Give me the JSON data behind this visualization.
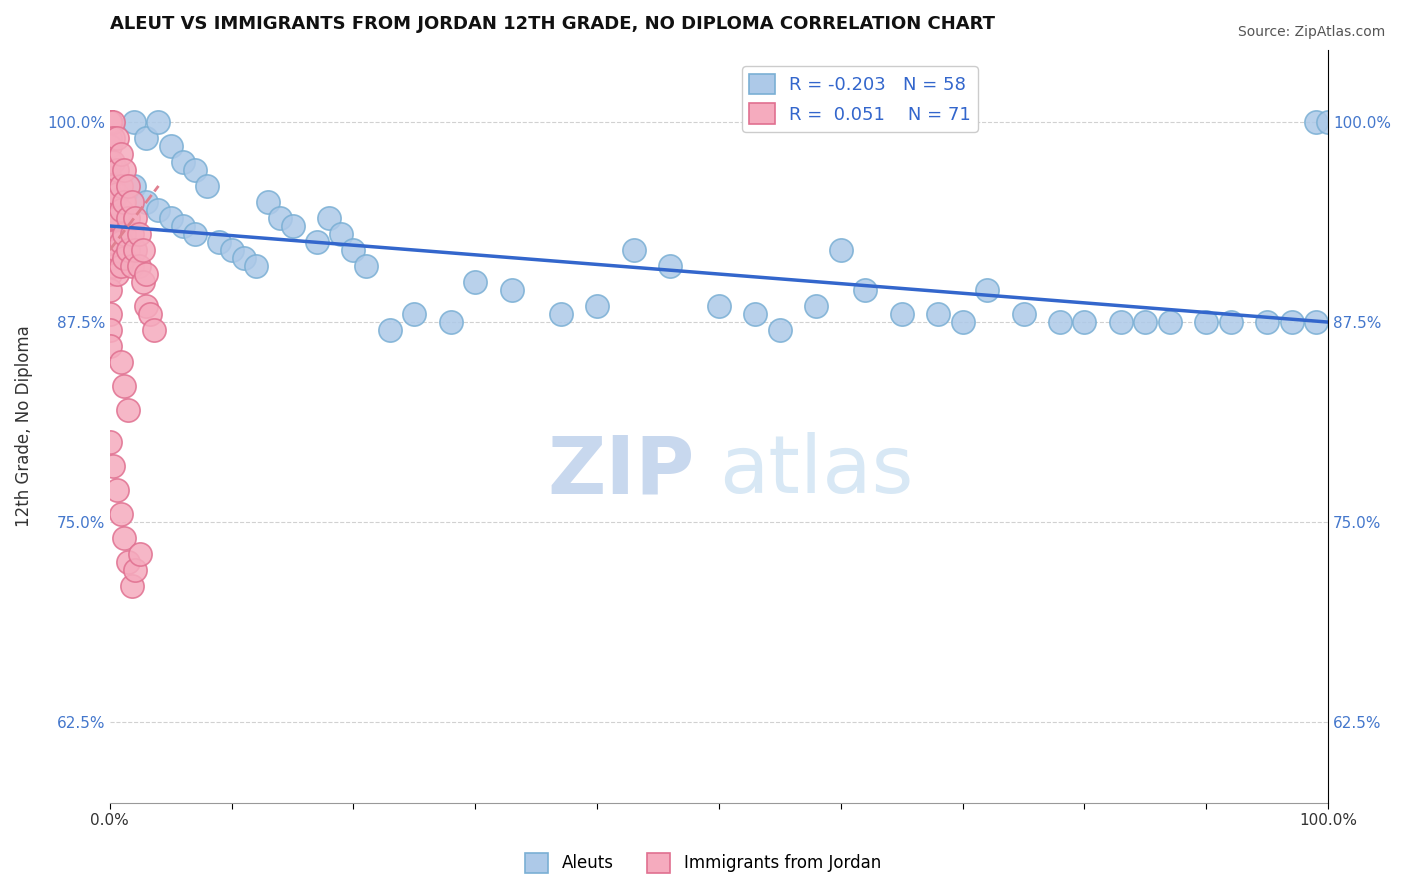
{
  "title": "ALEUT VS IMMIGRANTS FROM JORDAN 12TH GRADE, NO DIPLOMA CORRELATION CHART",
  "source": "Source: ZipAtlas.com",
  "ylabel": "12th Grade, No Diploma",
  "xlim": [
    0.0,
    1.0
  ],
  "ylim": [
    0.575,
    1.045
  ],
  "yticks": [
    0.625,
    0.75,
    0.875,
    1.0
  ],
  "ytick_labels": [
    "62.5%",
    "75.0%",
    "87.5%",
    "100.0%"
  ],
  "xticks": [
    0.0,
    0.1,
    0.2,
    0.3,
    0.4,
    0.5,
    0.6,
    0.7,
    0.8,
    0.9,
    1.0
  ],
  "xtick_labels": [
    "0.0%",
    "",
    "",
    "",
    "",
    "",
    "",
    "",
    "",
    "",
    "100.0%"
  ],
  "legend_R1": "-0.203",
  "legend_N1": "58",
  "legend_R2": "0.051",
  "legend_N2": "71",
  "aleut_color": "#adc9e8",
  "jordan_color": "#f5abbe",
  "aleut_edge": "#7aafd4",
  "jordan_edge": "#e07090",
  "trend1_color": "#3366cc",
  "trend2_color": "#e08090",
  "watermark": "ZIPatlas",
  "watermark_color": "#dce8f5",
  "background": "#ffffff",
  "grid_color": "#cccccc",
  "aleut_x": [
    0.01,
    0.02,
    0.02,
    0.03,
    0.03,
    0.04,
    0.04,
    0.05,
    0.05,
    0.06,
    0.06,
    0.07,
    0.07,
    0.08,
    0.09,
    0.1,
    0.11,
    0.12,
    0.13,
    0.14,
    0.15,
    0.17,
    0.18,
    0.19,
    0.2,
    0.21,
    0.23,
    0.25,
    0.28,
    0.3,
    0.33,
    0.37,
    0.4,
    0.43,
    0.46,
    0.5,
    0.53,
    0.55,
    0.58,
    0.6,
    0.62,
    0.65,
    0.68,
    0.7,
    0.72,
    0.75,
    0.78,
    0.8,
    0.83,
    0.85,
    0.87,
    0.9,
    0.92,
    0.95,
    0.97,
    0.99,
    0.99,
    1.0
  ],
  "aleut_y": [
    0.935,
    1.0,
    0.96,
    0.99,
    0.95,
    1.0,
    0.945,
    0.985,
    0.94,
    0.975,
    0.935,
    0.97,
    0.93,
    0.96,
    0.925,
    0.92,
    0.915,
    0.91,
    0.95,
    0.94,
    0.935,
    0.925,
    0.94,
    0.93,
    0.92,
    0.91,
    0.87,
    0.88,
    0.875,
    0.9,
    0.895,
    0.88,
    0.885,
    0.92,
    0.91,
    0.885,
    0.88,
    0.87,
    0.885,
    0.92,
    0.895,
    0.88,
    0.88,
    0.875,
    0.895,
    0.88,
    0.875,
    0.875,
    0.875,
    0.875,
    0.875,
    0.875,
    0.875,
    0.875,
    0.875,
    0.875,
    1.0,
    1.0
  ],
  "jordan_x": [
    0.0,
    0.0,
    0.0,
    0.0,
    0.0,
    0.0,
    0.0,
    0.0,
    0.0,
    0.0,
    0.0,
    0.0,
    0.0,
    0.0,
    0.0,
    0.0,
    0.0,
    0.0,
    0.0,
    0.0,
    0.003,
    0.003,
    0.003,
    0.003,
    0.003,
    0.003,
    0.003,
    0.003,
    0.006,
    0.006,
    0.006,
    0.006,
    0.006,
    0.006,
    0.009,
    0.009,
    0.009,
    0.009,
    0.009,
    0.012,
    0.012,
    0.012,
    0.012,
    0.015,
    0.015,
    0.015,
    0.018,
    0.018,
    0.018,
    0.021,
    0.021,
    0.024,
    0.024,
    0.027,
    0.027,
    0.03,
    0.03,
    0.033,
    0.036,
    0.009,
    0.012,
    0.015,
    0.0,
    0.003,
    0.006,
    0.009,
    0.012,
    0.015,
    0.018,
    0.021,
    0.025
  ],
  "jordan_y": [
    1.0,
    1.0,
    1.0,
    1.0,
    1.0,
    1.0,
    0.99,
    0.985,
    0.975,
    0.965,
    0.955,
    0.945,
    0.935,
    0.925,
    0.915,
    0.905,
    0.895,
    0.88,
    0.87,
    0.86,
    1.0,
    0.99,
    0.975,
    0.96,
    0.95,
    0.94,
    0.925,
    0.91,
    0.99,
    0.97,
    0.955,
    0.94,
    0.92,
    0.905,
    0.98,
    0.96,
    0.945,
    0.925,
    0.91,
    0.97,
    0.95,
    0.93,
    0.915,
    0.96,
    0.94,
    0.92,
    0.95,
    0.93,
    0.91,
    0.94,
    0.92,
    0.93,
    0.91,
    0.92,
    0.9,
    0.905,
    0.885,
    0.88,
    0.87,
    0.85,
    0.835,
    0.82,
    0.8,
    0.785,
    0.77,
    0.755,
    0.74,
    0.725,
    0.71,
    0.72,
    0.73
  ]
}
